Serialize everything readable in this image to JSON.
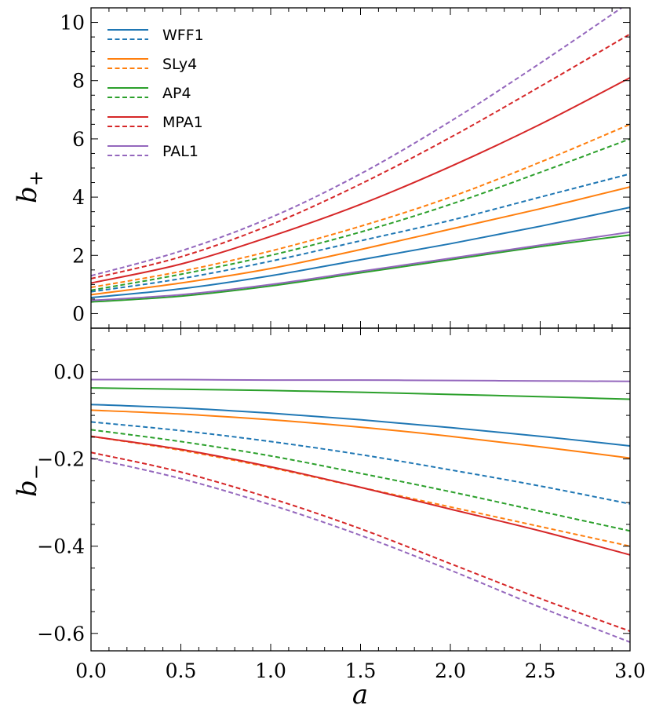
{
  "chart_data": [
    {
      "type": "line",
      "panel": "top",
      "ylabel": "b",
      "ylabel_subscript": "+",
      "xlim": [
        0,
        3.0
      ],
      "ylim": [
        -0.5,
        10.5
      ],
      "yticks": [
        0,
        2,
        4,
        6,
        8,
        10
      ],
      "yticklabels": [
        "0",
        "2",
        "4",
        "6",
        "8",
        "10"
      ],
      "legend": {
        "location": "upper-left",
        "entries": [
          "WFF1",
          "SLy4",
          "AP4",
          "MPA1",
          "PAL1"
        ]
      },
      "x": [
        0,
        0.5,
        1.0,
        1.5,
        2.0,
        2.5,
        3.0
      ],
      "series": [
        {
          "name": "WFF1",
          "style": "solid",
          "color": "#1f77b4",
          "values": [
            0.55,
            0.85,
            1.3,
            1.85,
            2.4,
            3.0,
            3.65
          ]
        },
        {
          "name": "WFF1",
          "style": "dashed",
          "color": "#1f77b4",
          "values": [
            0.75,
            1.2,
            1.8,
            2.5,
            3.2,
            4.0,
            4.8
          ]
        },
        {
          "name": "SLy4",
          "style": "solid",
          "color": "#ff7f0e",
          "values": [
            0.65,
            1.05,
            1.55,
            2.2,
            2.9,
            3.6,
            4.35
          ]
        },
        {
          "name": "SLy4",
          "style": "dashed",
          "color": "#ff7f0e",
          "values": [
            0.9,
            1.45,
            2.15,
            3.0,
            4.0,
            5.2,
            6.5
          ]
        },
        {
          "name": "AP4",
          "style": "solid",
          "color": "#2ca02c",
          "values": [
            0.4,
            0.6,
            0.95,
            1.4,
            1.85,
            2.3,
            2.7
          ]
        },
        {
          "name": "AP4",
          "style": "dashed",
          "color": "#2ca02c",
          "values": [
            0.8,
            1.35,
            2.0,
            2.8,
            3.75,
            4.85,
            6.0
          ]
        },
        {
          "name": "MPA1",
          "style": "solid",
          "color": "#d62728",
          "values": [
            1.05,
            1.7,
            2.65,
            3.75,
            5.05,
            6.5,
            8.1
          ]
        },
        {
          "name": "MPA1",
          "style": "dashed",
          "color": "#d62728",
          "values": [
            1.2,
            1.95,
            3.05,
            4.45,
            6.05,
            7.8,
            9.6
          ]
        },
        {
          "name": "PAL1",
          "style": "solid",
          "color": "#9467bd",
          "values": [
            0.45,
            0.65,
            1.0,
            1.45,
            1.9,
            2.35,
            2.8
          ]
        },
        {
          "name": "PAL1",
          "style": "dashed",
          "color": "#9467bd",
          "values": [
            1.3,
            2.15,
            3.3,
            4.8,
            6.6,
            8.6,
            10.7
          ]
        }
      ]
    },
    {
      "type": "line",
      "panel": "bottom",
      "xlabel": "a",
      "ylabel": "b",
      "ylabel_subscript": "−",
      "xlim": [
        0,
        3.0
      ],
      "ylim": [
        -0.64,
        0.1
      ],
      "yticks": [
        0,
        -0.2,
        -0.4,
        -0.6
      ],
      "yticklabels": [
        "0.0",
        "−0.2",
        "−0.4",
        "−0.6"
      ],
      "xticks": [
        0,
        0.5,
        1.0,
        1.5,
        2.0,
        2.5,
        3.0
      ],
      "xticklabels": [
        "0.0",
        "0.5",
        "1.0",
        "1.5",
        "2.0",
        "2.5",
        "3.0"
      ],
      "x": [
        0,
        0.5,
        1.0,
        1.5,
        2.0,
        2.5,
        3.0
      ],
      "series": [
        {
          "name": "WFF1",
          "style": "solid",
          "color": "#1f77b4",
          "values": [
            -0.075,
            -0.083,
            -0.095,
            -0.11,
            -0.128,
            -0.148,
            -0.17
          ]
        },
        {
          "name": "WFF1",
          "style": "dashed",
          "color": "#1f77b4",
          "values": [
            -0.115,
            -0.135,
            -0.16,
            -0.19,
            -0.225,
            -0.262,
            -0.303
          ]
        },
        {
          "name": "SLy4",
          "style": "solid",
          "color": "#ff7f0e",
          "values": [
            -0.088,
            -0.097,
            -0.11,
            -0.127,
            -0.148,
            -0.172,
            -0.198
          ]
        },
        {
          "name": "SLy4",
          "style": "dashed",
          "color": "#ff7f0e",
          "values": [
            -0.148,
            -0.18,
            -0.22,
            -0.265,
            -0.31,
            -0.355,
            -0.4
          ]
        },
        {
          "name": "AP4",
          "style": "solid",
          "color": "#2ca02c",
          "values": [
            -0.037,
            -0.04,
            -0.043,
            -0.047,
            -0.052,
            -0.057,
            -0.063
          ]
        },
        {
          "name": "AP4",
          "style": "dashed",
          "color": "#2ca02c",
          "values": [
            -0.133,
            -0.16,
            -0.193,
            -0.233,
            -0.275,
            -0.32,
            -0.365
          ]
        },
        {
          "name": "MPA1",
          "style": "solid",
          "color": "#d62728",
          "values": [
            -0.148,
            -0.178,
            -0.218,
            -0.265,
            -0.315,
            -0.365,
            -0.42
          ]
        },
        {
          "name": "MPA1",
          "style": "dashed",
          "color": "#d62728",
          "values": [
            -0.185,
            -0.23,
            -0.29,
            -0.36,
            -0.44,
            -0.52,
            -0.595
          ]
        },
        {
          "name": "PAL1",
          "style": "solid",
          "color": "#9467bd",
          "values": [
            -0.018,
            -0.018,
            -0.019,
            -0.019,
            -0.02,
            -0.021,
            -0.022
          ]
        },
        {
          "name": "PAL1",
          "style": "dashed",
          "color": "#9467bd",
          "values": [
            -0.198,
            -0.245,
            -0.305,
            -0.375,
            -0.455,
            -0.54,
            -0.62
          ]
        }
      ]
    }
  ]
}
